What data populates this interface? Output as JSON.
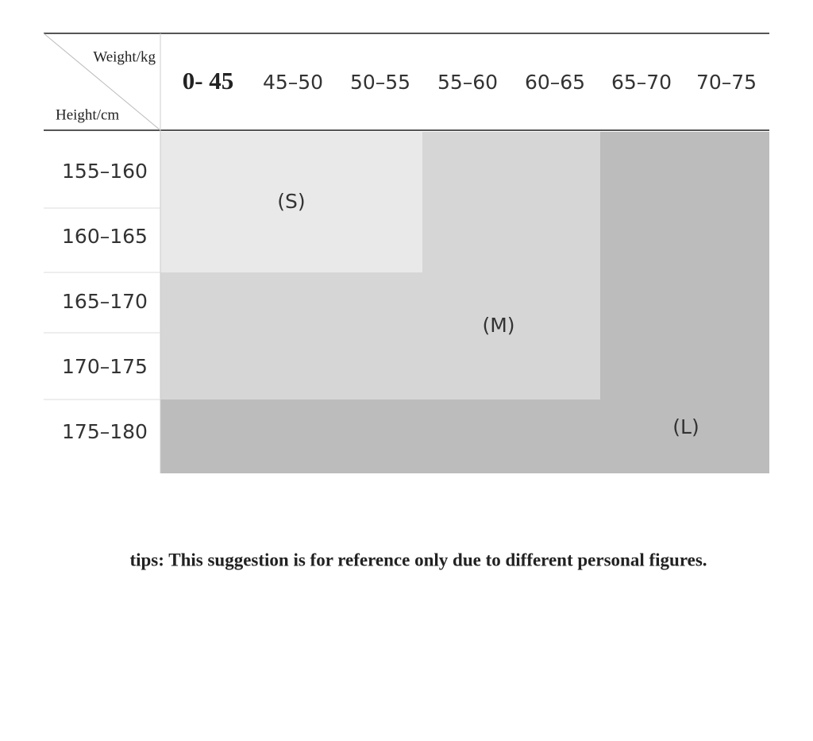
{
  "header": {
    "weight_label": "Weight/kg",
    "height_label": "Height/cm",
    "columns": [
      "0- 45",
      "45–50",
      "50–55",
      "55–60",
      "60–65",
      "65–70",
      "70–75"
    ]
  },
  "rows": [
    "155–160",
    "160–165",
    "165–170",
    "170–175",
    "175–180"
  ],
  "zones": {
    "small": "(S)",
    "medium": "(M)",
    "large": "(L)"
  },
  "tip": "tips: This suggestion is for reference only due to different personal figures."
}
